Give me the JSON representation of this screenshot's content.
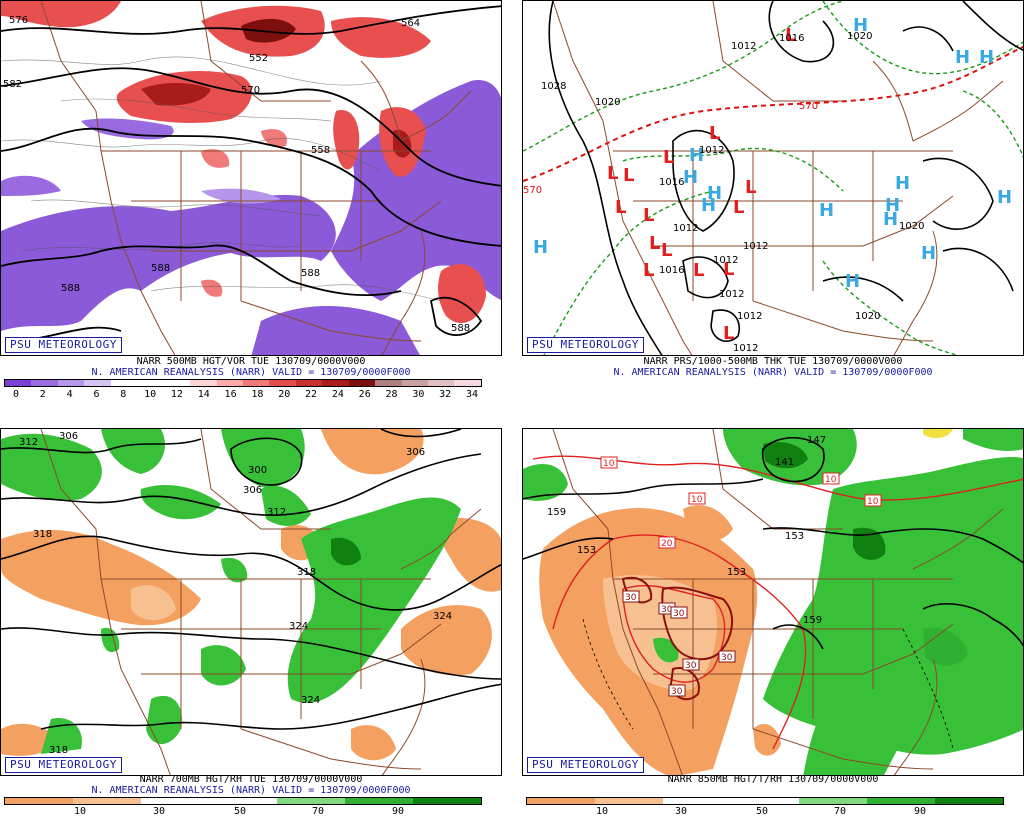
{
  "panels": [
    {
      "id": "p1",
      "logo": "PSU METEOROLOGY",
      "caption_line1": "NARR 500MB HGT/VOR TUE 130709/0000V000",
      "caption_line2": "N. AMERICAN REANALYSIS (NARR) VALID = 130709/0000F000",
      "contour_labels": [
        "576",
        "564",
        "552",
        "570",
        "558",
        "582",
        "588",
        "588",
        "588",
        "588"
      ],
      "colorbar_ticks": [
        "0",
        "2",
        "4",
        "6",
        "8",
        "10",
        "12",
        "14",
        "16",
        "18",
        "20",
        "22",
        "24",
        "26",
        "28",
        "30",
        "32",
        "34"
      ],
      "colorbar_colors": [
        "#7b3fd6",
        "#9a6be0",
        "#b596ea",
        "#d5c4f3",
        "#ffffff",
        "#ffffff",
        "#ffffff",
        "#ffd6d6",
        "#ffaaaa",
        "#f07a7a",
        "#e24e4e",
        "#c92f2f",
        "#a81c1c",
        "#7d0f0f",
        "#b08080",
        "#c8a0a0",
        "#e0c0c0",
        "#f5d8e0"
      ]
    },
    {
      "id": "p2",
      "logo": "PSU METEOROLOGY",
      "caption_line1": "NARR PRS/1000-500MB THK TUE 130709/0000V000",
      "caption_line2": "N. AMERICAN REANALYSIS (NARR) VALID = 130709/0000F000",
      "contour_labels": [
        "1012",
        "1016",
        "1020",
        "1028",
        "1020",
        "570",
        "570",
        "1012",
        "1012",
        "1012",
        "1012",
        "1012",
        "1012",
        "1020",
        "1020",
        "1016",
        "1016",
        "1012"
      ]
    },
    {
      "id": "p3",
      "logo": "PSU METEOROLOGY",
      "caption_line1": "NARR 700MB HGT/RH TUE 130709/0000V000",
      "caption_line2": "N. AMERICAN REANALYSIS (NARR) VALID = 130709/0000F000",
      "contour_labels": [
        "312",
        "306",
        "306",
        "300",
        "306",
        "312",
        "318",
        "318",
        "324",
        "324",
        "324",
        "318"
      ],
      "colorbar_ticks": [
        "10",
        "30",
        "50",
        "70",
        "90"
      ],
      "colorbar_colors": [
        "#f0a060",
        "#f7c090",
        "#ffffff",
        "#ffffff",
        "#80d880",
        "#30b030",
        "#108010"
      ]
    },
    {
      "id": "p4",
      "logo": "PSU METEOROLOGY",
      "caption_line1": "NARR 850MB HGT/T/RH 130709/0000V000",
      "caption_line2": "",
      "contour_labels": [
        "141",
        "147",
        "153",
        "153",
        "159",
        "159",
        "153",
        "10",
        "10",
        "10",
        "10",
        "20",
        "30",
        "30",
        "30",
        "30",
        "30",
        "30"
      ],
      "colorbar_ticks": [
        "10",
        "30",
        "50",
        "70",
        "90"
      ],
      "colorbar_colors": [
        "#f0a060",
        "#f7c090",
        "#ffffff",
        "#ffffff",
        "#80d880",
        "#30b030",
        "#108010"
      ]
    }
  ],
  "colors": {
    "border_brown": "#8b4a2b",
    "purple": "#8a5ad8",
    "red": "#e85050",
    "green": "#38c038",
    "orange": "#f4a060",
    "high_blue": "#39a9e3",
    "low_red": "#e02020"
  }
}
